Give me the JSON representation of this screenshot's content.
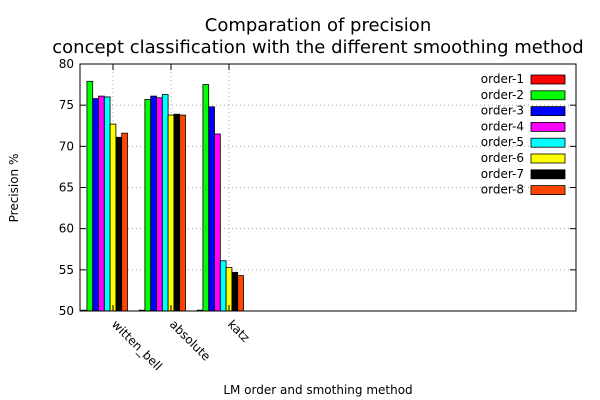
{
  "chart_data": {
    "type": "bar",
    "title": "Comparation of precision",
    "subtitle": "concept classification with the different smoothing method",
    "xlabel": "LM order and smothing method",
    "ylabel": "Precision %",
    "ylim": [
      50,
      80
    ],
    "yticks": [
      50,
      55,
      60,
      65,
      70,
      75,
      80
    ],
    "grid": true,
    "legend_position": "top-right",
    "categories": [
      "witten_bell",
      "absolute",
      "katz"
    ],
    "series": [
      {
        "name": "order-1",
        "color": "#ff0000",
        "values": [
          50.1,
          50.1,
          50.1
        ]
      },
      {
        "name": "order-2",
        "color": "#00ff00",
        "values": [
          77.9,
          75.7,
          77.5
        ]
      },
      {
        "name": "order-3",
        "color": "#0000ff",
        "values": [
          75.8,
          76.1,
          74.8
        ]
      },
      {
        "name": "order-4",
        "color": "#ff00ff",
        "values": [
          76.1,
          75.9,
          71.5
        ]
      },
      {
        "name": "order-5",
        "color": "#00ffff",
        "values": [
          76.0,
          76.3,
          56.1
        ]
      },
      {
        "name": "order-6",
        "color": "#ffff00",
        "values": [
          72.7,
          73.8,
          55.3
        ]
      },
      {
        "name": "order-7",
        "color": "#000000",
        "values": [
          71.1,
          73.9,
          54.7
        ]
      },
      {
        "name": "order-8",
        "color": "#ff4500",
        "values": [
          71.6,
          73.8,
          54.3
        ]
      }
    ]
  }
}
